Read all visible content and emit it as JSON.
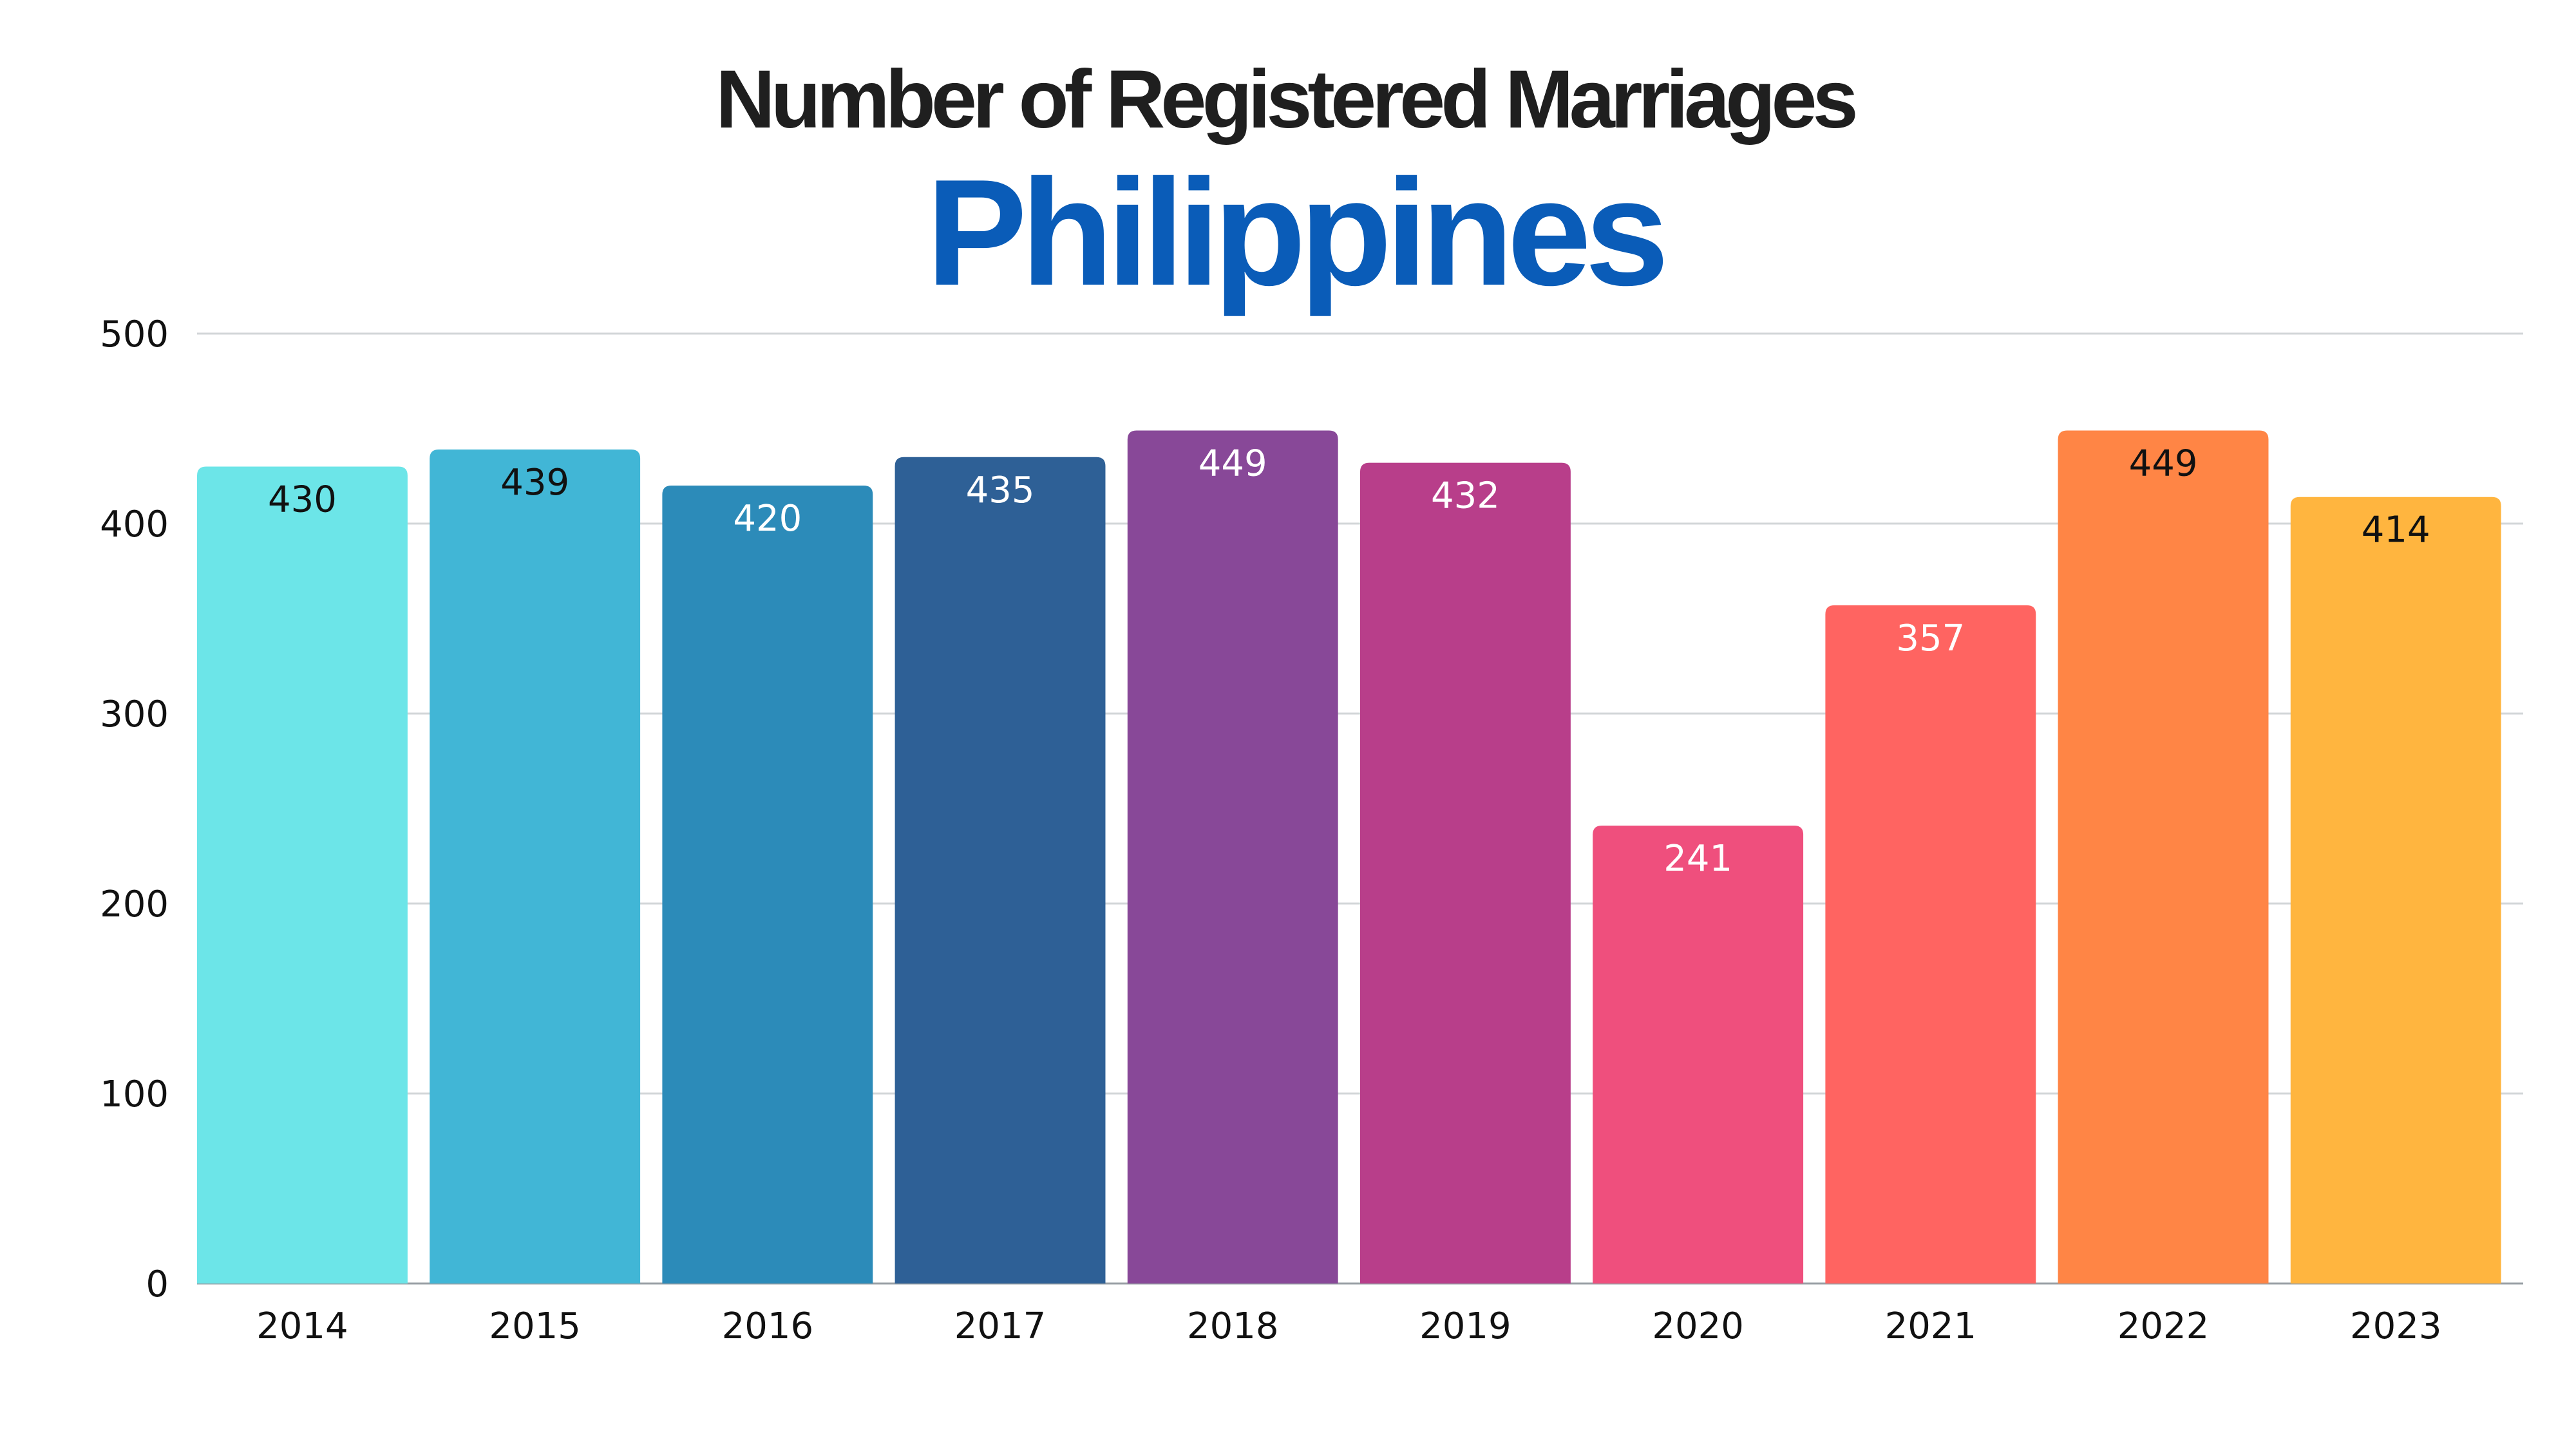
{
  "chart_data": {
    "type": "bar",
    "title": "Number of Registered Marriages",
    "subtitle": "Philippines",
    "xlabel": "",
    "ylabel": "",
    "categories": [
      "2014",
      "2015",
      "2016",
      "2017",
      "2018",
      "2019",
      "2020",
      "2021",
      "2022",
      "2023"
    ],
    "values": [
      430,
      439,
      420,
      435,
      449,
      432,
      241,
      357,
      449,
      414
    ],
    "ylim": [
      0,
      500
    ],
    "yticks": [
      0,
      100,
      200,
      300,
      400,
      500
    ],
    "grid": true,
    "bar_colors": [
      "#6ce5e8",
      "#41b6d6",
      "#2c8bb9",
      "#2e6096",
      "#884898",
      "#b83e8a",
      "#ef4f7d",
      "#ff6461",
      "#ff8545",
      "#ffb53f"
    ],
    "label_colors": [
      "#111111",
      "#111111",
      "#ffffff",
      "#ffffff",
      "#ffffff",
      "#ffffff",
      "#ffffff",
      "#ffffff",
      "#111111",
      "#111111"
    ],
    "title_color": "#1f1f1f",
    "subtitle_color": "#0a5cb8"
  }
}
